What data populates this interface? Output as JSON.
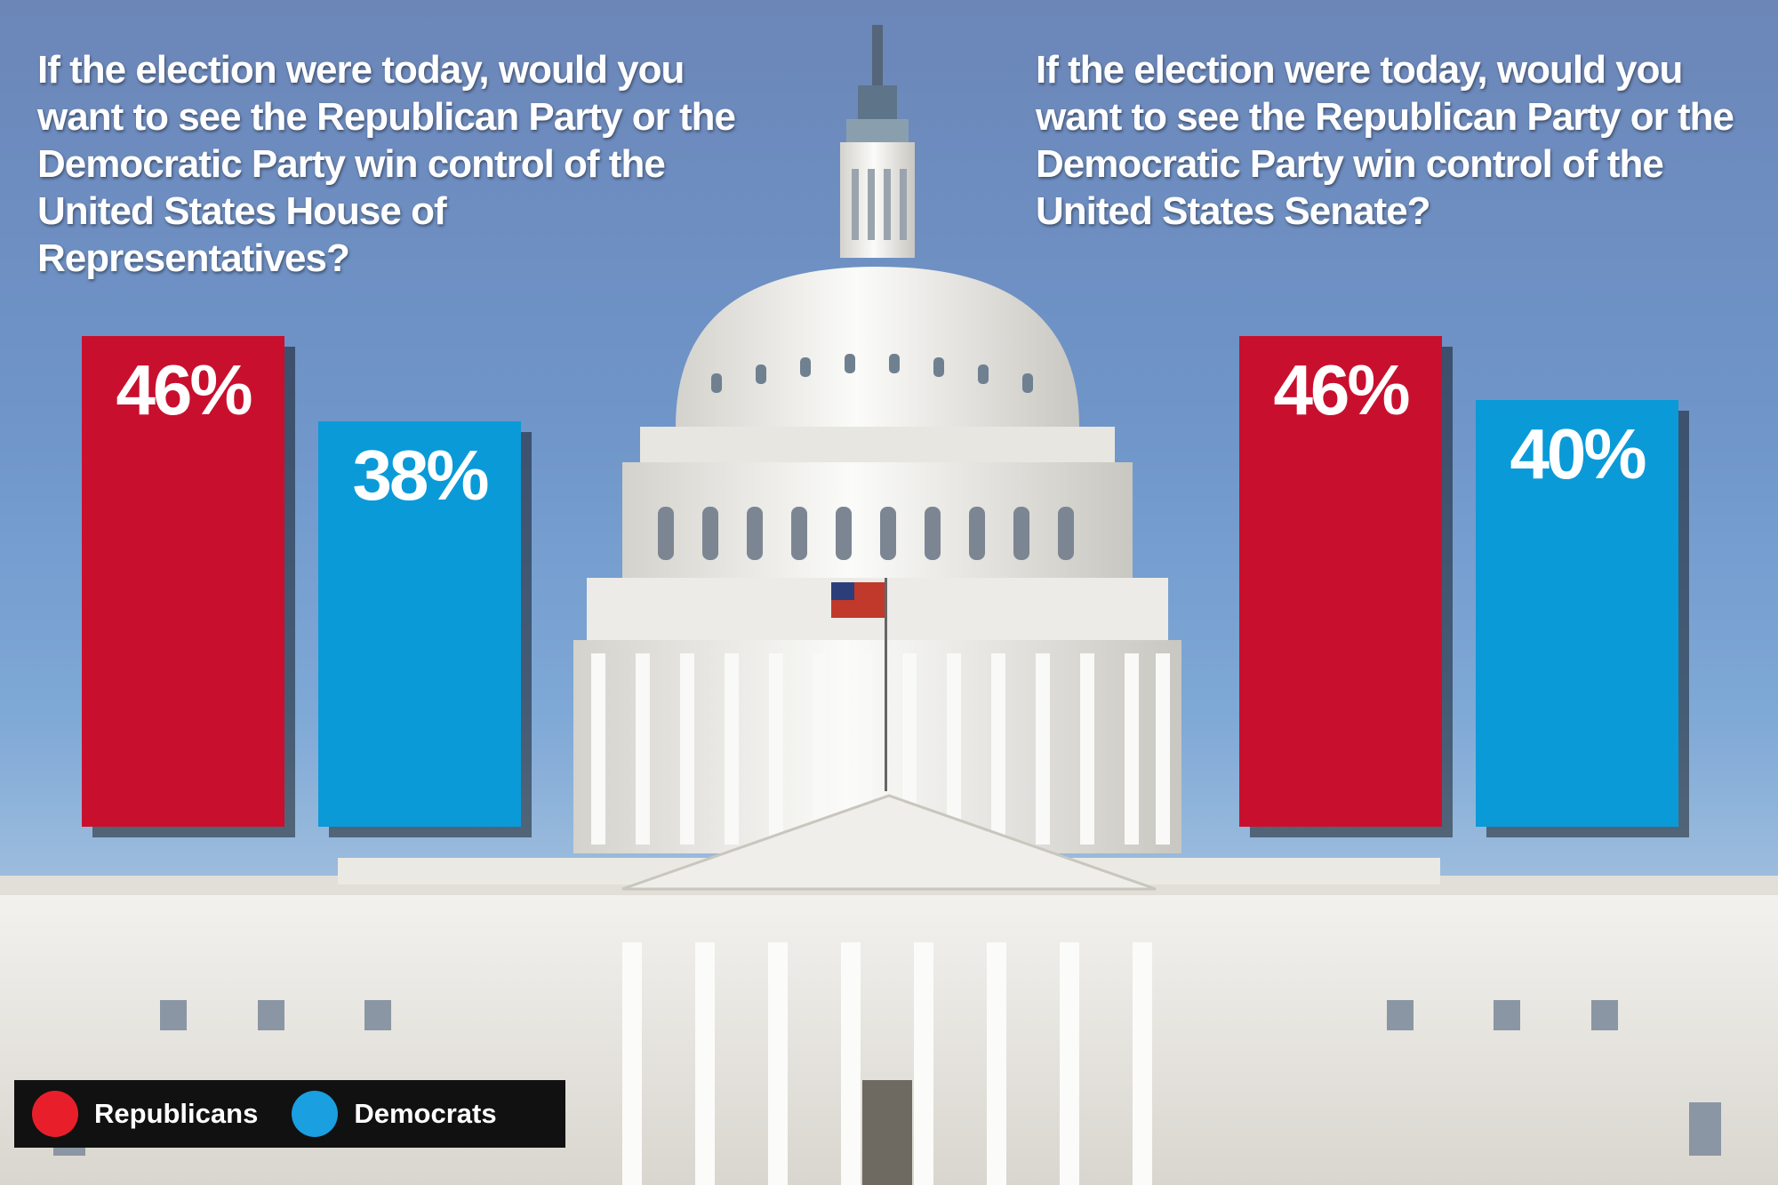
{
  "colors": {
    "republicans": "#c8102e",
    "democrats": "#0a9ad8",
    "legend_republicans": "#e81f2b",
    "legend_democrats": "#1a9fe0",
    "legend_background": "#111111"
  },
  "background_image": "us-capitol-building-photo",
  "chart_data": [
    {
      "type": "bar",
      "title": "If the election were today, would you want to see the Republican Party or the Democratic Party win control of the United States House of Representatives?",
      "categories": [
        "Republicans",
        "Democrats"
      ],
      "values": [
        46,
        38
      ],
      "labels": [
        "46%",
        "38%"
      ],
      "ylim": [
        0,
        100
      ],
      "grid": false,
      "legend": "bottom-left"
    },
    {
      "type": "bar",
      "title": "If the election were today, would you want to see the Republican Party or the Democratic Party win control of the United States Senate?",
      "categories": [
        "Republicans",
        "Democrats"
      ],
      "values": [
        46,
        40
      ],
      "labels": [
        "46%",
        "40%"
      ],
      "ylim": [
        0,
        100
      ],
      "grid": false,
      "legend": "bottom-left"
    }
  ],
  "legend": {
    "republicans_label": "Republicans",
    "democrats_label": "Democrats"
  }
}
